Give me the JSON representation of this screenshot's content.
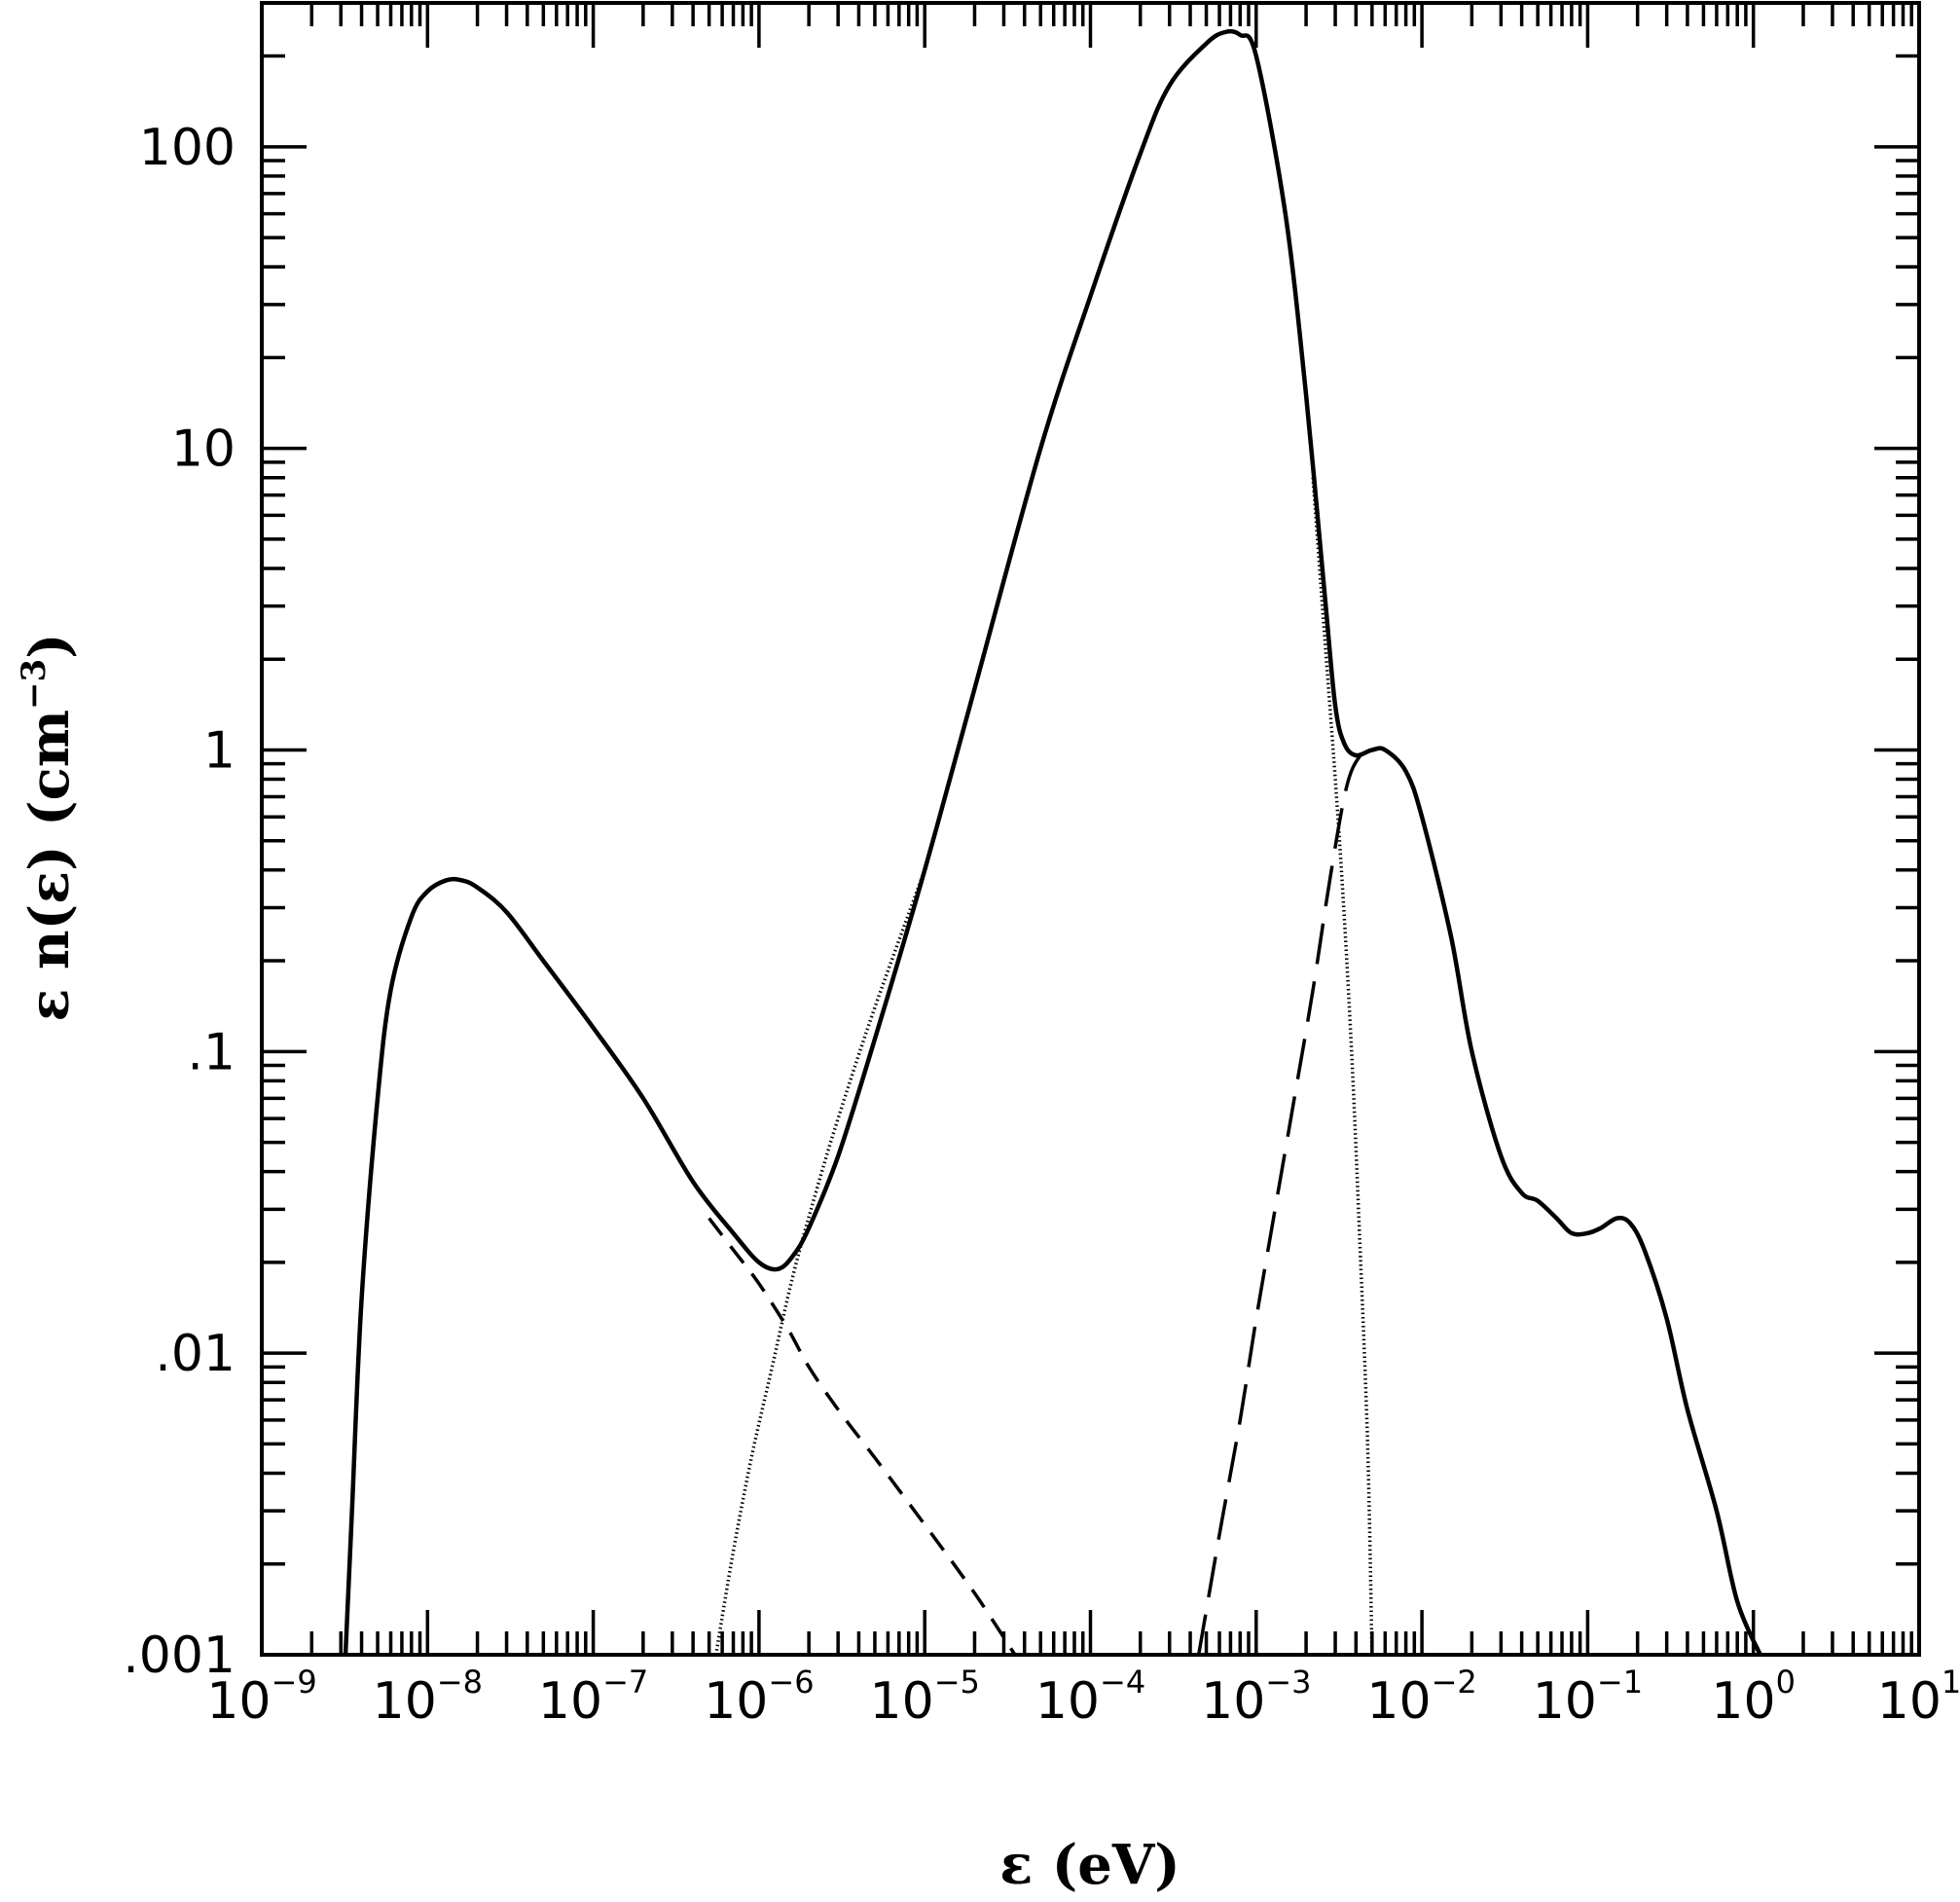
{
  "chart_data": {
    "type": "line",
    "xlabel": "ε  (eV)",
    "ylabel": "ε n(ε)  (cm",
    "ylabel_exp": "−3",
    "ylabel_close": ")",
    "xscale": "log",
    "yscale": "log",
    "xlim": [
      1e-09,
      10
    ],
    "ylim": [
      0.001,
      300
    ],
    "grid": false,
    "legend": "none",
    "x_ticks": [
      {
        "base": "10",
        "exp": "−9",
        "value": 1e-09
      },
      {
        "base": "10",
        "exp": "−8",
        "value": 1e-08
      },
      {
        "base": "10",
        "exp": "−7",
        "value": 1e-07
      },
      {
        "base": "10",
        "exp": "−6",
        "value": 1e-06
      },
      {
        "base": "10",
        "exp": "−5",
        "value": 1e-05
      },
      {
        "base": "10",
        "exp": "−4",
        "value": 0.0001
      },
      {
        "base": "10",
        "exp": "−3",
        "value": 0.001
      },
      {
        "base": "10",
        "exp": "−2",
        "value": 0.01
      },
      {
        "base": "10",
        "exp": "−1",
        "value": 0.1
      },
      {
        "base": "10",
        "exp": "0",
        "value": 1
      },
      {
        "base": "10",
        "exp": "1",
        "value": 10
      }
    ],
    "y_ticks": [
      {
        "label": ".001",
        "value": 0.001
      },
      {
        "label": ".01",
        "value": 0.01
      },
      {
        "label": ".1",
        "value": 0.1
      },
      {
        "label": "1",
        "value": 1
      },
      {
        "label": "10",
        "value": 10
      },
      {
        "label": "100",
        "value": 100
      }
    ],
    "series": [
      {
        "style": "solid",
        "x": [
          3.2e-09,
          3.5e-09,
          4e-09,
          5e-09,
          6e-09,
          8e-09,
          1e-08,
          1.3e-08,
          1.6e-08,
          2e-08,
          3e-08,
          5e-08,
          1e-07,
          2e-07,
          4e-07,
          7e-07,
          1e-06,
          1.3e-06,
          1.6e-06,
          2e-06,
          3e-06,
          5e-06,
          1e-05,
          2e-05,
          5e-05,
          0.0001,
          0.0002,
          0.0003,
          0.0005,
          0.00065,
          0.0008,
          0.001,
          0.0015,
          0.002,
          0.0026,
          0.003,
          0.0034,
          0.004,
          0.005,
          0.006,
          0.008,
          0.01,
          0.015,
          0.02,
          0.03,
          0.04,
          0.05,
          0.065,
          0.08,
          0.1,
          0.12,
          0.15,
          0.18,
          0.22,
          0.3,
          0.4,
          0.6,
          0.8,
          1.1
        ],
        "y": [
          0.001,
          0.003,
          0.015,
          0.07,
          0.16,
          0.28,
          0.34,
          0.37,
          0.37,
          0.35,
          0.29,
          0.2,
          0.12,
          0.07,
          0.037,
          0.025,
          0.02,
          0.019,
          0.021,
          0.026,
          0.045,
          0.11,
          0.4,
          1.6,
          10,
          32,
          95,
          160,
          220,
          240,
          235,
          200,
          60,
          15,
          3.2,
          1.4,
          1.05,
          0.96,
          1.0,
          1.0,
          0.85,
          0.6,
          0.24,
          0.1,
          0.045,
          0.034,
          0.032,
          0.028,
          0.025,
          0.025,
          0.026,
          0.028,
          0.027,
          0.022,
          0.013,
          0.0065,
          0.003,
          0.0015,
          0.001
        ]
      },
      {
        "style": "short-dash",
        "x": [
          5e-07,
          7e-07,
          1e-06,
          1.5e-06,
          2e-06,
          3e-06,
          5e-06,
          1e-05,
          2e-05,
          3.5e-05
        ],
        "y": [
          0.028,
          0.022,
          0.017,
          0.012,
          0.009,
          0.0065,
          0.0045,
          0.0027,
          0.0016,
          0.001
        ]
      },
      {
        "style": "dotted",
        "x": [
          5.5e-07,
          7e-07,
          9e-07,
          1.2e-06,
          1.6e-06,
          2.2e-06,
          3e-06,
          5e-06,
          1e-05
        ],
        "y": [
          0.001,
          0.0022,
          0.0045,
          0.009,
          0.018,
          0.034,
          0.06,
          0.14,
          0.4
        ]
      },
      {
        "style": "dotted",
        "x": [
          0.0022,
          0.0026,
          0.003,
          0.0034,
          0.0038,
          0.0042,
          0.0047,
          0.005
        ],
        "y": [
          8,
          2.3,
          0.8,
          0.28,
          0.09,
          0.025,
          0.005,
          0.001
        ]
      },
      {
        "style": "long-dash",
        "x": [
          0.00045,
          0.0006,
          0.0008,
          0.001,
          0.0013,
          0.0017,
          0.0022,
          0.0028,
          0.0035,
          0.0042,
          0.005
        ],
        "y": [
          0.001,
          0.0025,
          0.006,
          0.013,
          0.03,
          0.07,
          0.16,
          0.38,
          0.75,
          0.95,
          1.0
        ]
      }
    ]
  }
}
